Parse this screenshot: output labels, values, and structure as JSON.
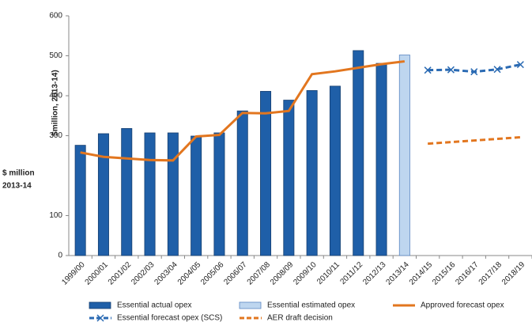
{
  "chart_data": {
    "type": "bar",
    "y_label": "$million, 2013-14)",
    "y_label_side": [
      "$ million",
      "2013-14"
    ],
    "categories": [
      "1999/00",
      "2000/01",
      "2001/02",
      "2002/03",
      "2003/04",
      "2004/05",
      "2005/06",
      "2006/07",
      "2007/08",
      "2008/09",
      "2009/10",
      "2010/11",
      "2011/12",
      "2012/13",
      "2013/14",
      "2014/15",
      "2015/16",
      "2016/17",
      "2017/18",
      "2018/19"
    ],
    "ylim": [
      0,
      600
    ],
    "yticks": [
      0,
      100,
      300,
      400,
      500,
      600
    ],
    "grid": false,
    "series": [
      {
        "name": "Essential actual opex",
        "kind": "bar",
        "color": "#1f5fa8",
        "edge": "#163f70",
        "values": [
          276,
          305,
          318,
          307,
          307,
          299,
          307,
          362,
          411,
          389,
          413,
          424,
          513,
          481,
          null,
          null,
          null,
          null,
          null,
          null
        ]
      },
      {
        "name": "Essential estimated opex",
        "kind": "bar",
        "color": "#bed6ef",
        "edge": "#5a86c2",
        "values": [
          null,
          null,
          null,
          null,
          null,
          null,
          null,
          null,
          null,
          null,
          null,
          null,
          null,
          null,
          502,
          null,
          null,
          null,
          null,
          null
        ]
      },
      {
        "name": "Approved forecast opex",
        "kind": "line",
        "color": "#e2761f",
        "values": [
          258,
          247,
          243,
          239,
          238,
          298,
          302,
          357,
          356,
          362,
          454,
          461,
          470,
          479,
          486,
          null,
          null,
          null,
          null,
          null
        ]
      },
      {
        "name": "Essential forecast opex (SCS)",
        "kind": "dashed-line",
        "marker": "x",
        "color": "#2a6ab3",
        "values": [
          null,
          null,
          null,
          null,
          null,
          null,
          null,
          null,
          null,
          null,
          null,
          null,
          null,
          null,
          null,
          464,
          465,
          460,
          466,
          478
        ]
      },
      {
        "name": "AER draft decision",
        "kind": "dashed-line",
        "color": "#e2761f",
        "values": [
          null,
          null,
          null,
          null,
          null,
          null,
          null,
          null,
          null,
          null,
          null,
          null,
          null,
          null,
          null,
          280,
          284,
          288,
          292,
          296
        ]
      }
    ]
  }
}
